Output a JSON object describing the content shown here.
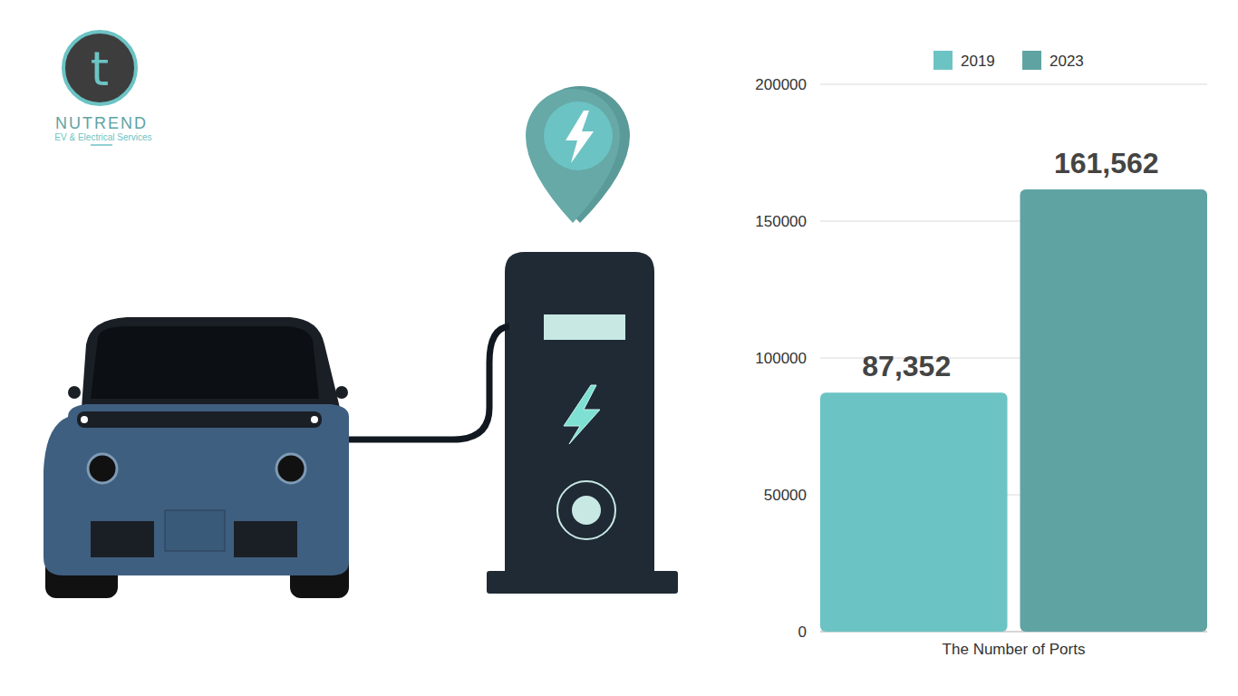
{
  "logo": {
    "letter": "t",
    "name": "NUTREND",
    "tagline": "EV & Electrical Services"
  },
  "chart_data": {
    "type": "bar",
    "categories": [
      "The Number of Ports"
    ],
    "series": [
      {
        "name": "2019",
        "color": "#6cc3c4",
        "values": [
          87352
        ],
        "value_labels": [
          "87,352"
        ]
      },
      {
        "name": "2023",
        "color": "#5fa3a3",
        "values": [
          161562
        ],
        "value_labels": [
          "161,562"
        ]
      }
    ],
    "ylim": [
      0,
      200000
    ],
    "yticks": [
      0,
      50000,
      100000,
      150000,
      200000
    ],
    "grid": true,
    "legend": "top",
    "data_labels": true
  }
}
